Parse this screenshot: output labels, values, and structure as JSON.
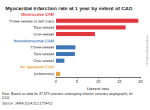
{
  "chart_data": {
    "type": "bar",
    "orientation": "horizontal",
    "title": "Myocardial infarction rate at 1 year by extent of CAD",
    "categories": [
      "Obstructive CAD",
      "Three-vessel or left main",
      "Two-vessel",
      "One-vessel",
      "Nonobstructive CAD",
      "Three-vessel",
      "Two-vessel",
      "One-vessel",
      "No apparent CAD",
      "(reference)"
    ],
    "values": [
      null,
      19.5,
      16.5,
      9.2,
      null,
      4.6,
      4.5,
      2.0,
      null,
      1.0
    ],
    "colors": [
      "#e0363c",
      "#e0363c",
      "#e0363c",
      "#e0363c",
      "#3f76b8",
      "#3f76b8",
      "#3f76b8",
      "#3f76b8",
      "#e3a23b",
      "#e3a23b"
    ],
    "xlabel": "Hazard ratio",
    "xlim": [
      0,
      20
    ],
    "xticks": [
      0,
      5,
      10,
      15,
      20
    ],
    "grid": false,
    "note": "Note: Based on data for 37,674 veterans undergoing elective coronary angiography for CAD.",
    "source": "Source: JAMA 2014;312:1754-63",
    "credit": "©Frontline Medical News"
  }
}
